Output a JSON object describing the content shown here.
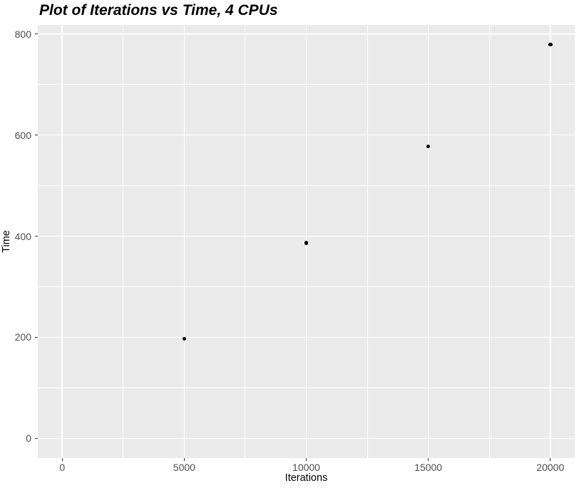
{
  "chart_data": {
    "type": "scatter",
    "title": "Plot of Iterations vs Time, 4 CPUs",
    "xlabel": "Iterations",
    "ylabel": "Time",
    "x": [
      5000,
      10000,
      15000,
      20000
    ],
    "y": [
      197,
      387,
      578,
      779
    ],
    "xlim": [
      -1000,
      21000
    ],
    "ylim": [
      -39,
      818
    ],
    "x_major_breaks": [
      0,
      5000,
      10000,
      15000,
      20000
    ],
    "x_tick_labels": [
      "0",
      "5000",
      "10000",
      "15000",
      "20000"
    ],
    "x_minor_breaks": [
      2500,
      7500,
      12500,
      17500
    ],
    "y_major_breaks": [
      0,
      200,
      400,
      600,
      800
    ],
    "y_tick_labels": [
      "0",
      "200",
      "400",
      "600",
      "800"
    ],
    "y_minor_breaks": [
      100,
      300,
      500,
      700
    ],
    "grid": true,
    "legend": "none",
    "style": "ggplot-grey-theme",
    "colors": {
      "panel_background": "#EBEBEB",
      "grid_major": "#FFFFFF",
      "grid_minor": "#FFFFFF",
      "point": "#000000",
      "tick_mark": "#333333",
      "tick_label": "#4D4D4D",
      "axis_title": "#000000",
      "title": "#000000",
      "plot_background": "#FFFFFF"
    }
  }
}
